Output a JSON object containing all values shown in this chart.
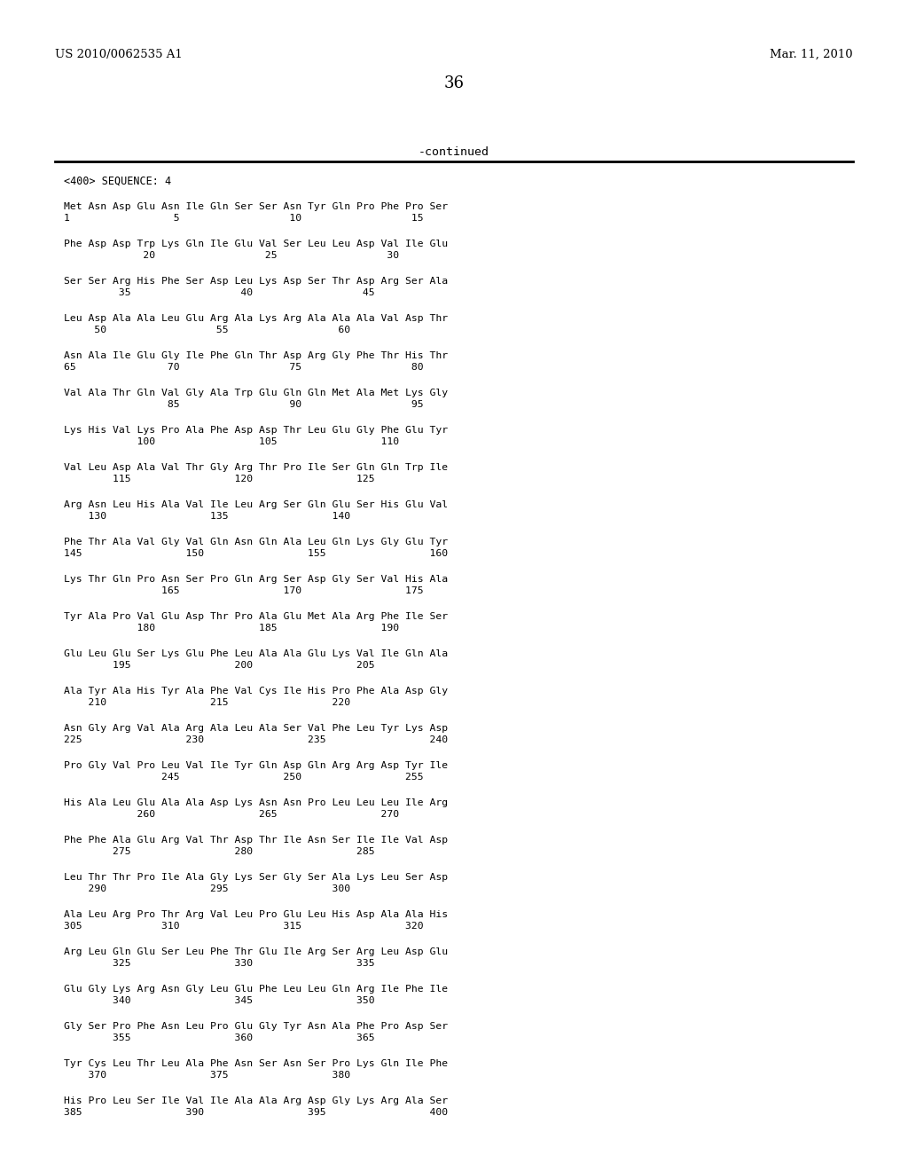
{
  "header_left": "US 2010/0062535 A1",
  "header_right": "Mar. 11, 2010",
  "page_number": "36",
  "continued_text": "-continued",
  "sequence_header": "<400> SEQUENCE: 4",
  "bg_color": "#ffffff",
  "text_color": "#000000",
  "sequence_blocks": [
    [
      "Met Asn Asp Glu Asn Ile Gln Ser Ser Asn Tyr Gln Pro Phe Pro Ser",
      "1                 5                  10                  15"
    ],
    [
      "Phe Asp Asp Trp Lys Gln Ile Glu Val Ser Leu Leu Asp Val Ile Glu",
      "             20                  25                  30"
    ],
    [
      "Ser Ser Arg His Phe Ser Asp Leu Lys Asp Ser Thr Asp Arg Ser Ala",
      "         35                  40                  45"
    ],
    [
      "Leu Asp Ala Ala Leu Glu Arg Ala Lys Arg Ala Ala Ala Val Asp Thr",
      "     50                  55                  60"
    ],
    [
      "Asn Ala Ile Glu Gly Ile Phe Gln Thr Asp Arg Gly Phe Thr His Thr",
      "65               70                  75                  80"
    ],
    [
      "Val Ala Thr Gln Val Gly Ala Trp Glu Gln Gln Met Ala Met Lys Gly",
      "                 85                  90                  95"
    ],
    [
      "Lys His Val Lys Pro Ala Phe Asp Asp Thr Leu Glu Gly Phe Glu Tyr",
      "            100                 105                 110"
    ],
    [
      "Val Leu Asp Ala Val Thr Gly Arg Thr Pro Ile Ser Gln Gln Trp Ile",
      "        115                 120                 125"
    ],
    [
      "Arg Asn Leu His Ala Val Ile Leu Arg Ser Gln Glu Ser His Glu Val",
      "    130                 135                 140"
    ],
    [
      "Phe Thr Ala Val Gly Val Gln Asn Gln Ala Leu Gln Lys Gly Glu Tyr",
      "145                 150                 155                 160"
    ],
    [
      "Lys Thr Gln Pro Asn Ser Pro Gln Arg Ser Asp Gly Ser Val His Ala",
      "                165                 170                 175"
    ],
    [
      "Tyr Ala Pro Val Glu Asp Thr Pro Ala Glu Met Ala Arg Phe Ile Ser",
      "            180                 185                 190"
    ],
    [
      "Glu Leu Glu Ser Lys Glu Phe Leu Ala Ala Glu Lys Val Ile Gln Ala",
      "        195                 200                 205"
    ],
    [
      "Ala Tyr Ala His Tyr Ala Phe Val Cys Ile His Pro Phe Ala Asp Gly",
      "    210                 215                 220"
    ],
    [
      "Asn Gly Arg Val Ala Arg Ala Leu Ala Ser Val Phe Leu Tyr Lys Asp",
      "225                 230                 235                 240"
    ],
    [
      "Pro Gly Val Pro Leu Val Ile Tyr Gln Asp Gln Arg Arg Asp Tyr Ile",
      "                245                 250                 255"
    ],
    [
      "His Ala Leu Glu Ala Ala Asp Lys Asn Asn Pro Leu Leu Leu Ile Arg",
      "            260                 265                 270"
    ],
    [
      "Phe Phe Ala Glu Arg Val Thr Asp Thr Ile Asn Ser Ile Ile Val Asp",
      "        275                 280                 285"
    ],
    [
      "Leu Thr Thr Pro Ile Ala Gly Lys Ser Gly Ser Ala Lys Leu Ser Asp",
      "    290                 295                 300"
    ],
    [
      "Ala Leu Arg Pro Thr Arg Val Leu Pro Glu Leu His Asp Ala Ala His",
      "305             310                 315                 320"
    ],
    [
      "Arg Leu Gln Glu Ser Leu Phe Thr Glu Ile Arg Ser Arg Leu Asp Glu",
      "        325                 330                 335"
    ],
    [
      "Glu Gly Lys Arg Asn Gly Leu Glu Phe Leu Leu Gln Arg Ile Phe Ile",
      "        340                 345                 350"
    ],
    [
      "Gly Ser Pro Phe Asn Leu Pro Glu Gly Tyr Asn Ala Phe Pro Asp Ser",
      "        355                 360                 365"
    ],
    [
      "Tyr Cys Leu Thr Leu Ala Phe Asn Ser Asn Ser Pro Lys Gln Ile Phe",
      "    370                 375                 380"
    ],
    [
      "His Pro Leu Ser Ile Val Ile Ala Ala Arg Asp Gly Lys Arg Ala Ser",
      "385                 390                 395                 400"
    ]
  ]
}
